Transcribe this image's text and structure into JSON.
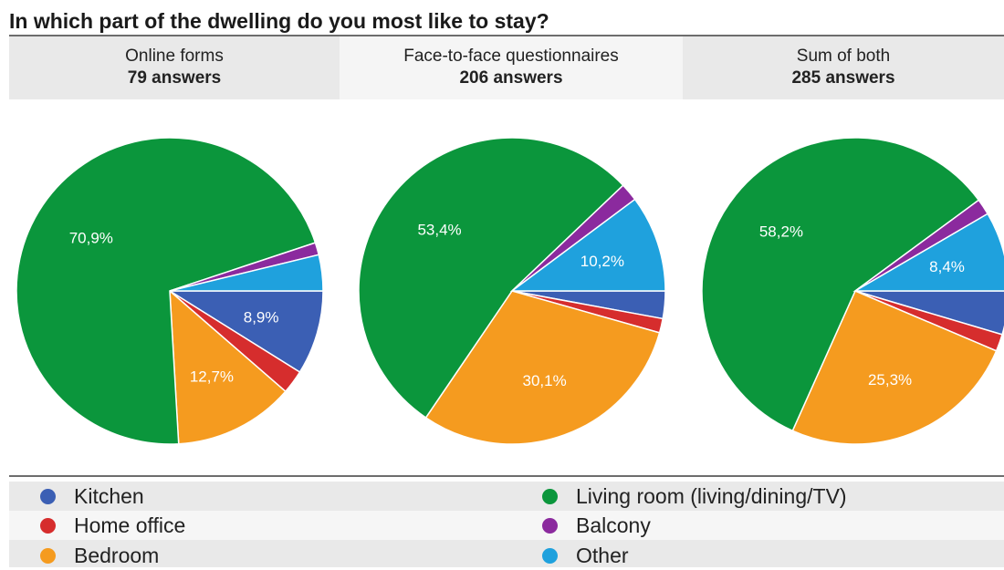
{
  "title": "In which part of the dwelling do you most like to stay?",
  "colors": {
    "Kitchen": "#3b5fb4",
    "Home office": "#d62d2d",
    "Bedroom": "#f59b1f",
    "Living room (living/dining/TV)": "#0b963c",
    "Balcony": "#8b2a9e",
    "Other": "#1fa1dd"
  },
  "legend": [
    {
      "label": "Kitchen"
    },
    {
      "label": "Home office"
    },
    {
      "label": "Bedroom"
    },
    {
      "label": "Living room (living/dining/TV)"
    },
    {
      "label": "Balcony"
    },
    {
      "label": "Other"
    }
  ],
  "chart_data": [
    {
      "type": "pie",
      "title": "Online forms",
      "subtitle": "79 answers",
      "categories": [
        "Kitchen",
        "Home office",
        "Bedroom",
        "Living room (living/dining/TV)",
        "Balcony",
        "Other"
      ],
      "values": [
        8.9,
        2.5,
        12.7,
        70.9,
        1.3,
        3.8
      ],
      "data_labels": [
        "8,9%",
        "",
        "12,7%",
        "70,9%",
        "",
        ""
      ]
    },
    {
      "type": "pie",
      "title": "Face-to-face questionnaires",
      "subtitle": "206 answers",
      "categories": [
        "Kitchen",
        "Home office",
        "Bedroom",
        "Living room (living/dining/TV)",
        "Balcony",
        "Other"
      ],
      "values": [
        2.9,
        1.5,
        30.1,
        53.4,
        1.9,
        10.2
      ],
      "data_labels": [
        "",
        "",
        "30,1%",
        "53,4%",
        "",
        "10,2%"
      ]
    },
    {
      "type": "pie",
      "title": "Sum of both",
      "subtitle": "285 answers",
      "categories": [
        "Kitchen",
        "Home office",
        "Bedroom",
        "Living room (living/dining/TV)",
        "Balcony",
        "Other"
      ],
      "values": [
        4.6,
        1.8,
        25.3,
        58.2,
        1.7,
        8.4
      ],
      "data_labels": [
        "",
        "",
        "25,3%",
        "58,2%",
        "",
        "8,4%"
      ]
    }
  ]
}
